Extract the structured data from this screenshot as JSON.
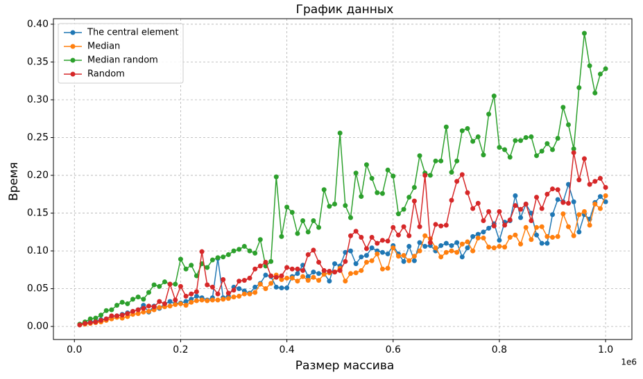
{
  "chart_data": {
    "type": "line",
    "title": "График данных",
    "x_label": "Размер массива",
    "y_label": "Время",
    "x_offset_label": "1e6",
    "x": [
      10000,
      20000,
      30000,
      40000,
      50000,
      60000,
      70000,
      80000,
      90000,
      100000,
      110000,
      120000,
      130000,
      140000,
      150000,
      160000,
      170000,
      180000,
      190000,
      200000,
      210000,
      220000,
      230000,
      240000,
      250000,
      260000,
      270000,
      280000,
      290000,
      300000,
      310000,
      320000,
      330000,
      340000,
      350000,
      360000,
      370000,
      380000,
      390000,
      400000,
      410000,
      420000,
      430000,
      440000,
      450000,
      460000,
      470000,
      480000,
      490000,
      500000,
      510000,
      520000,
      530000,
      540000,
      550000,
      560000,
      570000,
      580000,
      590000,
      600000,
      610000,
      620000,
      630000,
      640000,
      650000,
      660000,
      670000,
      680000,
      690000,
      700000,
      710000,
      720000,
      730000,
      740000,
      750000,
      760000,
      770000,
      780000,
      790000,
      800000,
      810000,
      820000,
      830000,
      840000,
      850000,
      860000,
      870000,
      880000,
      890000,
      900000,
      910000,
      920000,
      930000,
      940000,
      950000,
      960000,
      970000,
      980000,
      990000,
      1000000
    ],
    "series": [
      {
        "name": "The central element",
        "color": "#1f77b4",
        "values": [
          0.002,
          0.004,
          0.006,
          0.007,
          0.009,
          0.01,
          0.013,
          0.014,
          0.016,
          0.018,
          0.02,
          0.022,
          0.028,
          0.019,
          0.027,
          0.024,
          0.03,
          0.033,
          0.03,
          0.031,
          0.033,
          0.036,
          0.04,
          0.038,
          0.035,
          0.038,
          0.09,
          0.038,
          0.04,
          0.052,
          0.05,
          0.047,
          0.044,
          0.052,
          0.057,
          0.068,
          0.066,
          0.052,
          0.051,
          0.051,
          0.066,
          0.07,
          0.081,
          0.066,
          0.072,
          0.07,
          0.07,
          0.06,
          0.083,
          0.08,
          0.098,
          0.1,
          0.083,
          0.092,
          0.094,
          0.104,
          0.1,
          0.098,
          0.096,
          0.107,
          0.096,
          0.086,
          0.106,
          0.087,
          0.111,
          0.106,
          0.107,
          0.1,
          0.107,
          0.11,
          0.107,
          0.111,
          0.092,
          0.104,
          0.119,
          0.122,
          0.125,
          0.13,
          0.136,
          0.114,
          0.138,
          0.14,
          0.173,
          0.144,
          0.162,
          0.15,
          0.121,
          0.11,
          0.11,
          0.148,
          0.168,
          0.165,
          0.188,
          0.165,
          0.125,
          0.148,
          0.142,
          0.164,
          0.172,
          0.165
        ]
      },
      {
        "name": "Median",
        "color": "#ff7f0e",
        "values": [
          0.002,
          0.003,
          0.004,
          0.005,
          0.006,
          0.008,
          0.01,
          0.012,
          0.011,
          0.013,
          0.016,
          0.017,
          0.019,
          0.02,
          0.022,
          0.025,
          0.026,
          0.027,
          0.029,
          0.03,
          0.028,
          0.032,
          0.034,
          0.035,
          0.034,
          0.035,
          0.035,
          0.036,
          0.037,
          0.039,
          0.04,
          0.043,
          0.043,
          0.045,
          0.056,
          0.05,
          0.057,
          0.068,
          0.062,
          0.064,
          0.064,
          0.06,
          0.066,
          0.061,
          0.065,
          0.061,
          0.069,
          0.071,
          0.072,
          0.077,
          0.06,
          0.07,
          0.071,
          0.074,
          0.085,
          0.087,
          0.096,
          0.076,
          0.077,
          0.104,
          0.093,
          0.094,
          0.087,
          0.093,
          0.1,
          0.12,
          0.116,
          0.104,
          0.092,
          0.098,
          0.1,
          0.098,
          0.109,
          0.112,
          0.1,
          0.117,
          0.117,
          0.105,
          0.104,
          0.106,
          0.105,
          0.118,
          0.121,
          0.109,
          0.131,
          0.115,
          0.131,
          0.132,
          0.119,
          0.118,
          0.119,
          0.149,
          0.132,
          0.12,
          0.148,
          0.152,
          0.134,
          0.162,
          0.156,
          0.173
        ]
      },
      {
        "name": "Median random",
        "color": "#2ca02c",
        "values": [
          0.003,
          0.006,
          0.01,
          0.011,
          0.015,
          0.021,
          0.022,
          0.028,
          0.032,
          0.03,
          0.036,
          0.039,
          0.036,
          0.045,
          0.055,
          0.053,
          0.059,
          0.056,
          0.056,
          0.089,
          0.076,
          0.081,
          0.067,
          0.083,
          0.078,
          0.088,
          0.091,
          0.092,
          0.095,
          0.1,
          0.102,
          0.106,
          0.1,
          0.097,
          0.115,
          0.08,
          0.086,
          0.198,
          0.119,
          0.158,
          0.151,
          0.123,
          0.14,
          0.125,
          0.14,
          0.131,
          0.181,
          0.159,
          0.162,
          0.256,
          0.16,
          0.144,
          0.203,
          0.172,
          0.214,
          0.196,
          0.177,
          0.176,
          0.207,
          0.199,
          0.149,
          0.155,
          0.171,
          0.184,
          0.226,
          0.203,
          0.2,
          0.219,
          0.219,
          0.264,
          0.204,
          0.219,
          0.259,
          0.262,
          0.245,
          0.251,
          0.227,
          0.281,
          0.305,
          0.237,
          0.234,
          0.224,
          0.246,
          0.246,
          0.25,
          0.251,
          0.226,
          0.232,
          0.242,
          0.234,
          0.249,
          0.29,
          0.267,
          0.235,
          0.316,
          0.388,
          0.345,
          0.309,
          0.334,
          0.341
        ]
      },
      {
        "name": "Random",
        "color": "#d62728",
        "values": [
          0.002,
          0.004,
          0.005,
          0.006,
          0.008,
          0.01,
          0.014,
          0.014,
          0.015,
          0.017,
          0.02,
          0.022,
          0.024,
          0.027,
          0.026,
          0.033,
          0.03,
          0.056,
          0.035,
          0.053,
          0.04,
          0.043,
          0.046,
          0.099,
          0.055,
          0.052,
          0.043,
          0.062,
          0.044,
          0.048,
          0.06,
          0.061,
          0.064,
          0.076,
          0.08,
          0.085,
          0.067,
          0.065,
          0.067,
          0.078,
          0.076,
          0.076,
          0.074,
          0.095,
          0.101,
          0.085,
          0.074,
          0.073,
          0.072,
          0.074,
          0.086,
          0.12,
          0.126,
          0.118,
          0.103,
          0.118,
          0.11,
          0.114,
          0.113,
          0.131,
          0.121,
          0.132,
          0.12,
          0.166,
          0.132,
          0.2,
          0.111,
          0.135,
          0.133,
          0.134,
          0.167,
          0.192,
          0.201,
          0.177,
          0.156,
          0.163,
          0.14,
          0.152,
          0.133,
          0.152,
          0.134,
          0.141,
          0.16,
          0.155,
          0.162,
          0.14,
          0.171,
          0.156,
          0.175,
          0.182,
          0.181,
          0.164,
          0.163,
          0.23,
          0.194,
          0.222,
          0.188,
          0.192,
          0.196,
          0.184
        ]
      }
    ],
    "xlim": [
      -39500,
      1049500
    ],
    "ylim": [
      -0.0173,
      0.4073
    ],
    "xticks": [
      {
        "value": 0,
        "label": "0.0"
      },
      {
        "value": 200000,
        "label": "0.2"
      },
      {
        "value": 400000,
        "label": "0.4"
      },
      {
        "value": 600000,
        "label": "0.6"
      },
      {
        "value": 800000,
        "label": "0.8"
      },
      {
        "value": 1000000,
        "label": "1.0"
      }
    ],
    "yticks": [
      {
        "value": 0,
        "label": "0.00"
      },
      {
        "value": 0.05,
        "label": "0.05"
      },
      {
        "value": 0.1,
        "label": "0.10"
      },
      {
        "value": 0.15,
        "label": "0.15"
      },
      {
        "value": 0.2,
        "label": "0.20"
      },
      {
        "value": 0.25,
        "label": "0.25"
      },
      {
        "value": 0.3,
        "label": "0.30"
      },
      {
        "value": 0.35,
        "label": "0.35"
      },
      {
        "value": 0.4,
        "label": "0.40"
      }
    ],
    "grid": true,
    "legend": "upper left"
  }
}
